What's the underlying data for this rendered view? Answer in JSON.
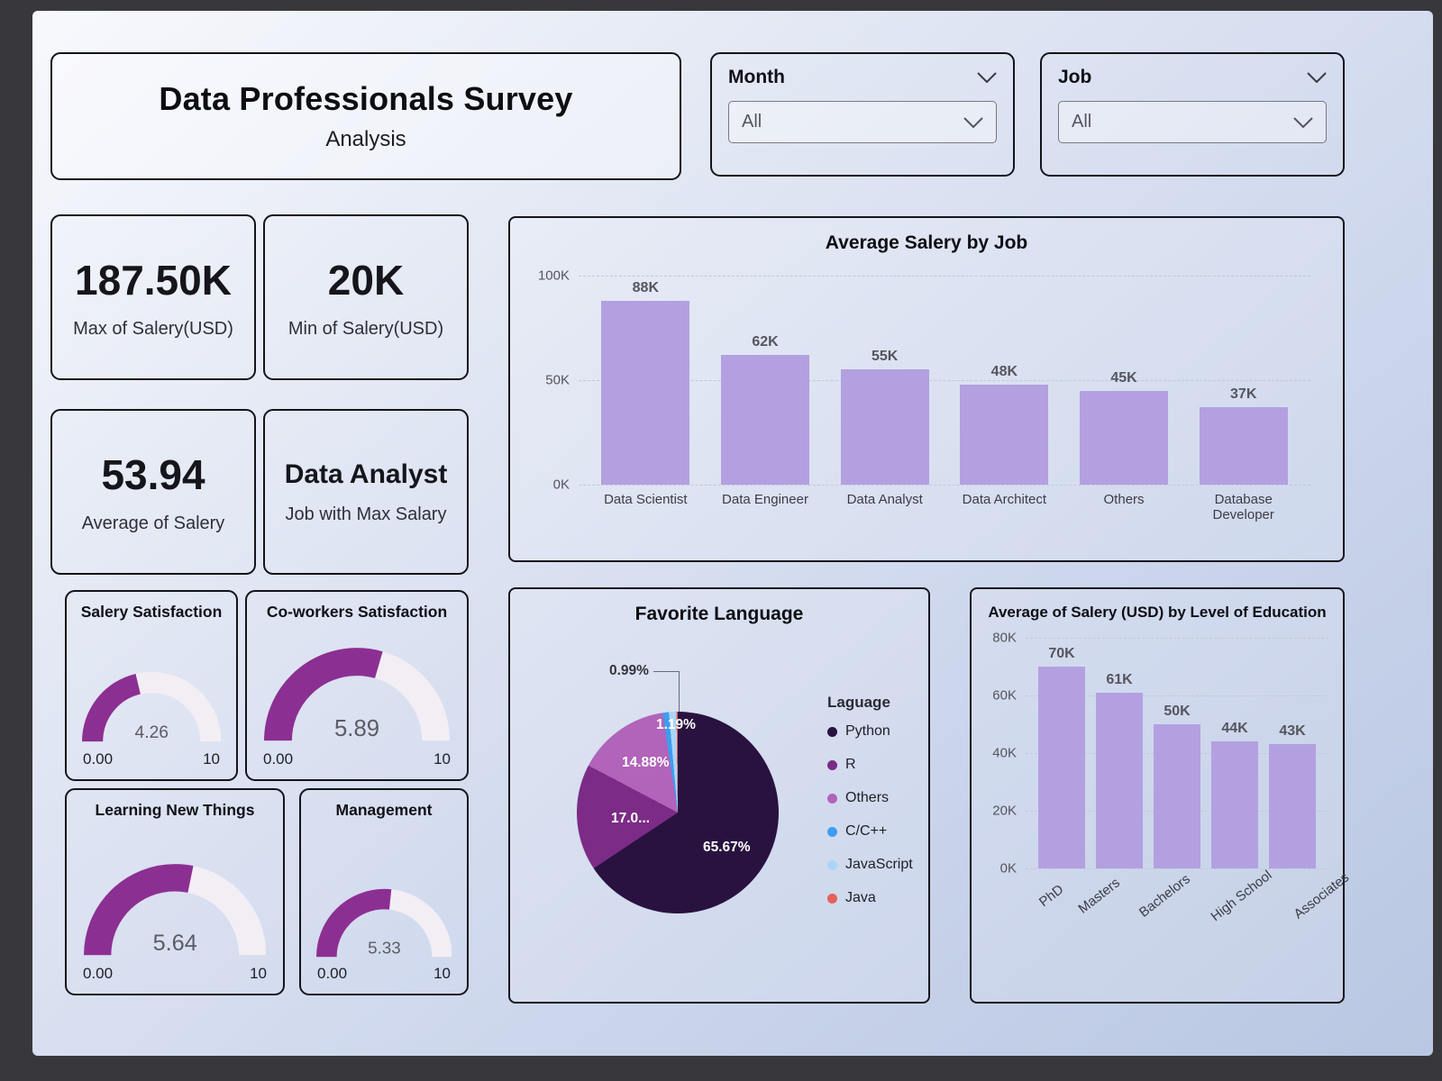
{
  "colors": {
    "bar": "#b3a0e1",
    "gauge_fill": "#8c2f92",
    "gauge_track": "#f2eef4"
  },
  "header": {
    "title": "Data Professionals Survey",
    "subtitle": "Analysis"
  },
  "slicers": [
    {
      "label": "Month",
      "value": "All"
    },
    {
      "label": "Job",
      "value": "All"
    }
  ],
  "kpis": [
    {
      "value": "187.50K",
      "label": "Max of Salery(USD)"
    },
    {
      "value": "20K",
      "label": "Min of Salery(USD)"
    },
    {
      "value": "53.94",
      "label": "Average of Salery"
    },
    {
      "value": "Data Analyst",
      "label": "Job with Max Salary"
    }
  ],
  "gauges": [
    {
      "title": "Salery Satisfaction",
      "value": "4.26",
      "min": "0.00",
      "max": "10"
    },
    {
      "title": "Co-workers Satisfaction",
      "value": "5.89",
      "min": "0.00",
      "max": "10"
    },
    {
      "title": "Learning New Things",
      "value": "5.64",
      "min": "0.00",
      "max": "10"
    },
    {
      "title": "Management",
      "value": "5.33",
      "min": "0.00",
      "max": "10"
    }
  ],
  "chart_data": [
    {
      "type": "bar",
      "title": "Average Salery by Job",
      "categories": [
        "Data Scientist",
        "Data Engineer",
        "Data Analyst",
        "Data Architect",
        "Others",
        "Database Developer"
      ],
      "values": [
        88,
        62,
        55,
        48,
        45,
        37
      ],
      "labels": [
        "88K",
        "62K",
        "55K",
        "48K",
        "45K",
        "37K"
      ],
      "ylim": [
        0,
        100
      ],
      "yticks": [
        0,
        50,
        100
      ],
      "ytick_labels": [
        "0K",
        "50K",
        "100K"
      ],
      "xlabel": "",
      "ylabel": "",
      "grid": true,
      "legend": "none"
    },
    {
      "type": "pie",
      "title": "Favorite Language",
      "legend_title": "Laguage",
      "legend_position": "right",
      "slices": [
        {
          "label": "Python",
          "value": 65.67,
          "data_label": "65.67%",
          "color": "#29123f"
        },
        {
          "label": "R",
          "value": 17.05,
          "data_label": "17.0...",
          "color": "#7c2b86"
        },
        {
          "label": "Others",
          "value": 14.88,
          "data_label": "14.88%",
          "color": "#b164ba"
        },
        {
          "label": "C/C++",
          "value": 0.99,
          "data_label": "0.99%",
          "color": "#3d9df0"
        },
        {
          "label": "JavaScript",
          "value": 1.19,
          "data_label": "1.19%",
          "color": "#abd4f6"
        },
        {
          "label": "Java",
          "value": 0.22,
          "data_label": "",
          "color": "#e6605d"
        }
      ]
    },
    {
      "type": "bar",
      "title": "Average of Salery (USD) by Level of Education",
      "categories": [
        "PhD",
        "Masters",
        "Bachelors",
        "High School",
        "Associates"
      ],
      "values": [
        70,
        61,
        50,
        44,
        43
      ],
      "labels": [
        "70K",
        "61K",
        "50K",
        "44K",
        "43K"
      ],
      "ylim": [
        0,
        80
      ],
      "yticks": [
        0,
        20,
        40,
        60,
        80
      ],
      "ytick_labels": [
        "0K",
        "20K",
        "40K",
        "60K",
        "80K"
      ],
      "xlabel": "",
      "ylabel": "",
      "grid": true,
      "legend": "none",
      "rotate_labels": true
    }
  ]
}
